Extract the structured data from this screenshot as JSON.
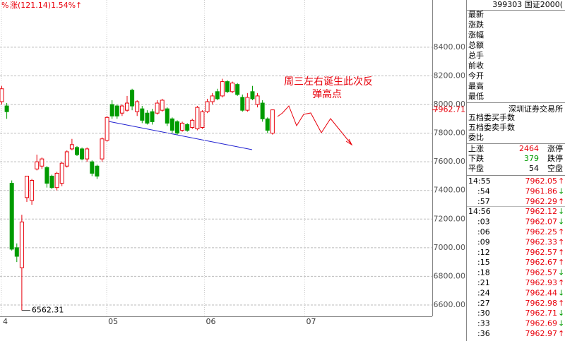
{
  "chart_data": {
    "type": "candlestick",
    "header": {
      "left": "%",
      "change": "涨(121.14)1.54%↑"
    },
    "categories": [
      null,
      null,
      null,
      null,
      null,
      null,
      null,
      null,
      null,
      null,
      null,
      null,
      null,
      null,
      null,
      null,
      null,
      null,
      null,
      null,
      null,
      null,
      null,
      null,
      null,
      null,
      null,
      null,
      null,
      null,
      null,
      null,
      null,
      null,
      null,
      null,
      null,
      null,
      null,
      null,
      null,
      null,
      null,
      null,
      null,
      null,
      null,
      null,
      null,
      null,
      null,
      null,
      null,
      null,
      null
    ],
    "open": [
      8020,
      7990,
      7450,
      7000,
      6860,
      7350,
      7330,
      7550,
      7570,
      7560,
      7500,
      7420,
      7450,
      7570,
      7690,
      7700,
      7690,
      7620,
      7600,
      7570,
      7620,
      7750,
      8000,
      7990,
      7940,
      7960,
      8100,
      7950,
      7970,
      7940,
      7950,
      7940,
      7960,
      7970,
      7900,
      7880,
      7820,
      7860,
      7840,
      7830,
      7840,
      7950,
      8020,
      8090,
      8060,
      8160,
      8090,
      8140,
      8050,
      7960,
      8090,
      8000,
      8010,
      7900,
      7800
    ],
    "high": [
      8130,
      8010,
      7470,
      7030,
      7230,
      7500,
      7480,
      7650,
      7630,
      7570,
      7510,
      7530,
      7600,
      7680,
      7760,
      7710,
      7700,
      7700,
      7610,
      7580,
      7770,
      7920,
      8030,
      8000,
      8000,
      8060,
      8110,
      8030,
      7990,
      7960,
      7970,
      8030,
      8040,
      7980,
      7910,
      7890,
      7880,
      7870,
      7900,
      7990,
      7960,
      8040,
      8080,
      8110,
      8180,
      8170,
      8160,
      8150,
      8070,
      8080,
      8130,
      8080,
      8030,
      7910,
      7965
    ],
    "low": [
      8000,
      7900,
      6980,
      6900,
      6562.31,
      7320,
      7300,
      7540,
      7550,
      7420,
      7410,
      7400,
      7430,
      7560,
      7680,
      7640,
      7610,
      7600,
      7500,
      7480,
      7600,
      7740,
      7900,
      7900,
      7920,
      7950,
      7960,
      7920,
      7870,
      7860,
      7860,
      7930,
      7950,
      7850,
      7800,
      7790,
      7810,
      7810,
      7830,
      7820,
      7830,
      7940,
      8000,
      8030,
      8050,
      8080,
      8080,
      8060,
      7950,
      7950,
      8030,
      7980,
      7880,
      7800,
      7790
    ],
    "close": [
      8110,
      7950,
      6990,
      6940,
      7180,
      7500,
      7470,
      7600,
      7620,
      7450,
      7420,
      7520,
      7590,
      7670,
      7720,
      7650,
      7620,
      7690,
      7520,
      7500,
      7760,
      7910,
      7920,
      7920,
      7990,
      8010,
      7990,
      8020,
      7890,
      7870,
      7880,
      8010,
      8030,
      7870,
      7820,
      7800,
      7870,
      7820,
      7890,
      7980,
      7950,
      8020,
      8060,
      8040,
      8160,
      8090,
      8150,
      8070,
      7960,
      8050,
      8040,
      8060,
      7900,
      7820,
      7962.71
    ],
    "up_color": "#e8000b",
    "down_color": "#009b00",
    "xlim": [
      0,
      85.5
    ],
    "xticks": [
      {
        "value": 0,
        "label": "4"
      },
      {
        "value": 21,
        "label": "05"
      },
      {
        "value": 40.5,
        "label": "06"
      },
      {
        "value": 60.5,
        "label": "07"
      }
    ],
    "ylim": [
      6452,
      8730
    ],
    "yticks": [
      {
        "value": 6600,
        "label": "6600.00"
      },
      {
        "value": 6800,
        "label": "6800.00"
      },
      {
        "value": 7000,
        "label": "7000.00"
      },
      {
        "value": 7200,
        "label": "7200.00"
      },
      {
        "value": 7400,
        "label": "7400.00"
      },
      {
        "value": 7600,
        "label": "7600.00"
      },
      {
        "value": 7800,
        "label": "7800.00"
      },
      {
        "value": 8000,
        "label": "8000.00"
      },
      {
        "value": 8200,
        "label": "8200.00"
      },
      {
        "value": 8400,
        "label": "8400.00"
      }
    ],
    "grid": true,
    "low_label": {
      "value": 6562.31,
      "label": "6562.31"
    },
    "last_label": {
      "value": 7962.71,
      "label": "7962.71"
    },
    "annotation": [
      "周三左右诞生此次反",
      "弹高点"
    ]
  },
  "quote_panel": {
    "title": "399303 国证2000(",
    "fields": [
      "最新",
      "涨跌",
      "涨幅",
      "总额",
      "总手",
      "前收",
      "今开",
      "最高",
      "最低"
    ],
    "exchange": "深圳证券交易所",
    "orders": [
      "五档委买手数",
      "五档委卖手数",
      "委比"
    ],
    "breadth": [
      [
        "上涨",
        "2464",
        "涨停"
      ],
      [
        "下跌",
        "379",
        "跌停"
      ],
      [
        "平盘",
        "54",
        "空盘"
      ]
    ],
    "ticks": [
      [
        "14:55",
        "7962.05",
        "↑"
      ],
      [
        ":54",
        "7961.86",
        "↓"
      ],
      [
        ":57",
        "7962.29",
        "↑"
      ],
      [
        "14:56",
        "7962.12",
        "↓"
      ],
      [
        ":03",
        "7962.07",
        "↓"
      ],
      [
        ":06",
        "7962.25",
        "↑"
      ],
      [
        ":09",
        "7962.33",
        "↑"
      ],
      [
        ":12",
        "7962.57",
        "↑"
      ],
      [
        ":15",
        "7962.67",
        "↑"
      ],
      [
        ":18",
        "7962.57",
        "↓"
      ],
      [
        ":21",
        "7962.93",
        "↑"
      ],
      [
        ":24",
        "7962.44",
        "↓"
      ],
      [
        ":27",
        "7962.98",
        "↑"
      ],
      [
        ":30",
        "7962.71",
        "↓"
      ],
      [
        ":33",
        "7962.69",
        "↓"
      ],
      [
        ":36",
        "7962.97",
        "↑"
      ]
    ]
  }
}
